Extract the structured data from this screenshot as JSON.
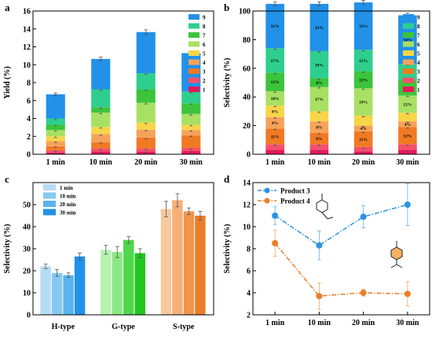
{
  "chart_data": [
    {
      "panel": "a",
      "type": "bar",
      "stacked": true,
      "ylabel": "Yield (%)",
      "ylim": [
        0,
        16
      ],
      "yticks": [
        0,
        2,
        4,
        6,
        8,
        10,
        12,
        14,
        16
      ],
      "categories": [
        "1 min",
        "10 min",
        "20 min",
        "30 min"
      ],
      "legend_position": "top-right",
      "series": [
        {
          "name": "1",
          "color": "#e8175d",
          "values": [
            0.2,
            0.3,
            0.3,
            0.35
          ]
        },
        {
          "name": "2",
          "color": "#f4506a",
          "values": [
            0.25,
            0.35,
            0.35,
            0.35
          ]
        },
        {
          "name": "3",
          "color": "#f07a24",
          "values": [
            0.45,
            0.7,
            1.2,
            1.4
          ]
        },
        {
          "name": "4",
          "color": "#f5a35a",
          "values": [
            0.55,
            0.9,
            0.9,
            0.6
          ]
        },
        {
          "name": "5",
          "color": "#f7d548",
          "values": [
            0.55,
            0.8,
            0.8,
            0.6
          ]
        },
        {
          "name": "6",
          "color": "#a8e063",
          "values": [
            0.7,
            1.6,
            2.2,
            1.2
          ]
        },
        {
          "name": "7",
          "color": "#3cc43c",
          "values": [
            0.6,
            0.6,
            1.5,
            1.2
          ]
        },
        {
          "name": "8",
          "color": "#2ecf8e",
          "values": [
            0.7,
            2.0,
            1.8,
            1.3
          ]
        },
        {
          "name": "9",
          "color": "#2291e8",
          "values": [
            2.7,
            3.4,
            4.6,
            4.3
          ]
        }
      ],
      "totals_err": [
        0.15,
        0.2,
        0.25,
        0.25
      ]
    },
    {
      "panel": "b",
      "type": "bar",
      "stacked": true,
      "ylabel": "Selectivity (%)",
      "ylim": [
        0,
        100
      ],
      "yticks": [
        0,
        20,
        40,
        60,
        80,
        100
      ],
      "categories": [
        "1 min",
        "10 min",
        "20 min",
        "30 min"
      ],
      "legend_position": "top-right",
      "series": [
        {
          "name": "1",
          "color": "#e8175d",
          "values": [
            3,
            3,
            2,
            3
          ]
        },
        {
          "name": "2",
          "color": "#f4506a",
          "values": [
            4,
            4,
            3,
            4
          ]
        },
        {
          "name": "3",
          "color": "#f07a24",
          "values": [
            11,
            8,
            11,
            12
          ]
        },
        {
          "name": "4",
          "color": "#f5a35a",
          "values": [
            8,
            8,
            4,
            4
          ]
        },
        {
          "name": "5",
          "color": "#f7d548",
          "values": [
            8,
            7,
            7,
            6
          ]
        },
        {
          "name": "6",
          "color": "#a8e063",
          "values": [
            10,
            17,
            19,
            12
          ]
        },
        {
          "name": "7",
          "color": "#3cc43c",
          "values": [
            13,
            6,
            12,
            11
          ]
        },
        {
          "name": "8",
          "color": "#2ecf8e",
          "values": [
            17,
            19,
            15,
            11
          ]
        },
        {
          "name": "9",
          "color": "#2291e8",
          "values": [
            31,
            33,
            33,
            34
          ]
        }
      ],
      "labels": [
        [
          null,
          null,
          "11%",
          "8%",
          "8%",
          "10%",
          "13%",
          "17%",
          "31%"
        ],
        [
          null,
          null,
          "8%",
          "8%",
          null,
          "17%",
          "6%",
          "19%",
          "33%"
        ],
        [
          null,
          null,
          "11%",
          "4%",
          null,
          "19%",
          "12%",
          "15%",
          "33%"
        ],
        [
          null,
          null,
          "12%",
          "4%",
          null,
          "12%",
          "11%",
          "11%",
          "34%"
        ]
      ]
    },
    {
      "panel": "c",
      "type": "bar",
      "grouped": true,
      "ylabel": "Selectivity (%)",
      "ylim": [
        0,
        60
      ],
      "yticks": [
        0,
        10,
        20,
        30,
        40,
        50
      ],
      "categories": [
        "H-type",
        "G-type",
        "S-type"
      ],
      "series_names": [
        "1 min",
        "10 min",
        "20 min",
        "30 min"
      ],
      "legend_position": "top-left",
      "values": [
        [
          22,
          19,
          18,
          26.5
        ],
        [
          29.5,
          28.5,
          34,
          28
        ],
        [
          48,
          52,
          47,
          45
        ]
      ],
      "errors": [
        [
          1,
          1.5,
          1,
          1.5
        ],
        [
          2,
          2.5,
          1.5,
          2
        ],
        [
          3.5,
          3,
          1.5,
          2
        ]
      ],
      "colors": [
        [
          "#b5dcf5",
          "#86c8f0",
          "#5ab4ef",
          "#2291e8"
        ],
        [
          "#b6f2b0",
          "#8ce885",
          "#4fd84b",
          "#1fc71f"
        ],
        [
          "#f7c9a0",
          "#f5b07a",
          "#f0954e",
          "#ec7d28"
        ]
      ]
    },
    {
      "panel": "d",
      "type": "line",
      "ylabel": "Selectivity (%)",
      "ylim": [
        2,
        14
      ],
      "yticks": [
        2,
        4,
        6,
        8,
        10,
        12,
        14
      ],
      "x": [
        "1 min",
        "10 min",
        "20 min",
        "30 min"
      ],
      "legend_position": "top-left",
      "series": [
        {
          "name": "Product 3",
          "color": "#2b93e3",
          "values": [
            11,
            8.3,
            10.9,
            12
          ],
          "errors": [
            0.8,
            1.3,
            1.0,
            1.9
          ]
        },
        {
          "name": "Product 4",
          "color": "#ec7d28",
          "values": [
            8.5,
            3.7,
            4.0,
            3.9
          ],
          "errors": [
            1.2,
            1.2,
            0.3,
            1.1
          ]
        }
      ]
    }
  ]
}
